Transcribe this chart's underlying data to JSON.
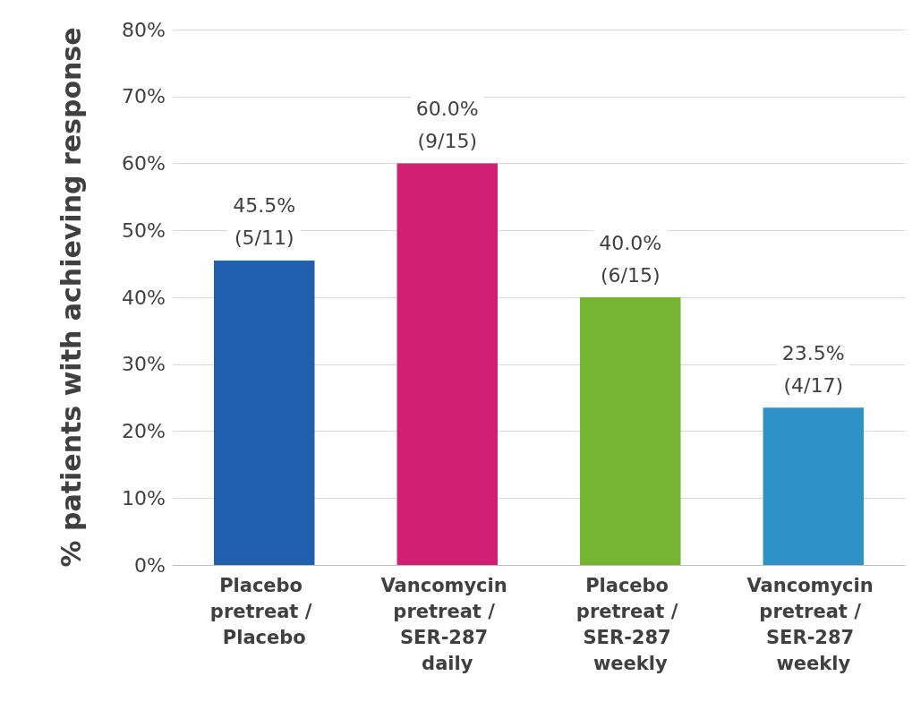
{
  "chart_data": {
    "type": "bar",
    "ylabel": "% patients with achieving response",
    "categories": [
      "Placebo pretreat / Placebo",
      "Vancomycin pretreat / SER-287 daily",
      "Placebo pretreat / SER-287 weekly",
      "Vancomycin pretreat / SER-287 weekly"
    ],
    "values": [
      45.5,
      60.0,
      40.0,
      23.5
    ],
    "colors": [
      "#1f5fad",
      "#d01f75",
      "#76b531",
      "#2e92c6"
    ],
    "value_labels": [
      "45.5%\n(5/11)",
      "60.0%\n(9/15)",
      "40.0%\n(6/15)",
      "23.5%\n(4/17)"
    ],
    "ylim": [
      0,
      80
    ],
    "yticks": [
      {
        "value": 0,
        "label": "0%"
      },
      {
        "value": 10,
        "label": "10%"
      },
      {
        "value": 20,
        "label": "20%"
      },
      {
        "value": 30,
        "label": "30%"
      },
      {
        "value": 40,
        "label": "40%"
      },
      {
        "value": 50,
        "label": "50%"
      },
      {
        "value": 60,
        "label": "60%"
      },
      {
        "value": 70,
        "label": "70%"
      },
      {
        "value": 80,
        "label": "80%"
      }
    ],
    "grid": "y"
  }
}
